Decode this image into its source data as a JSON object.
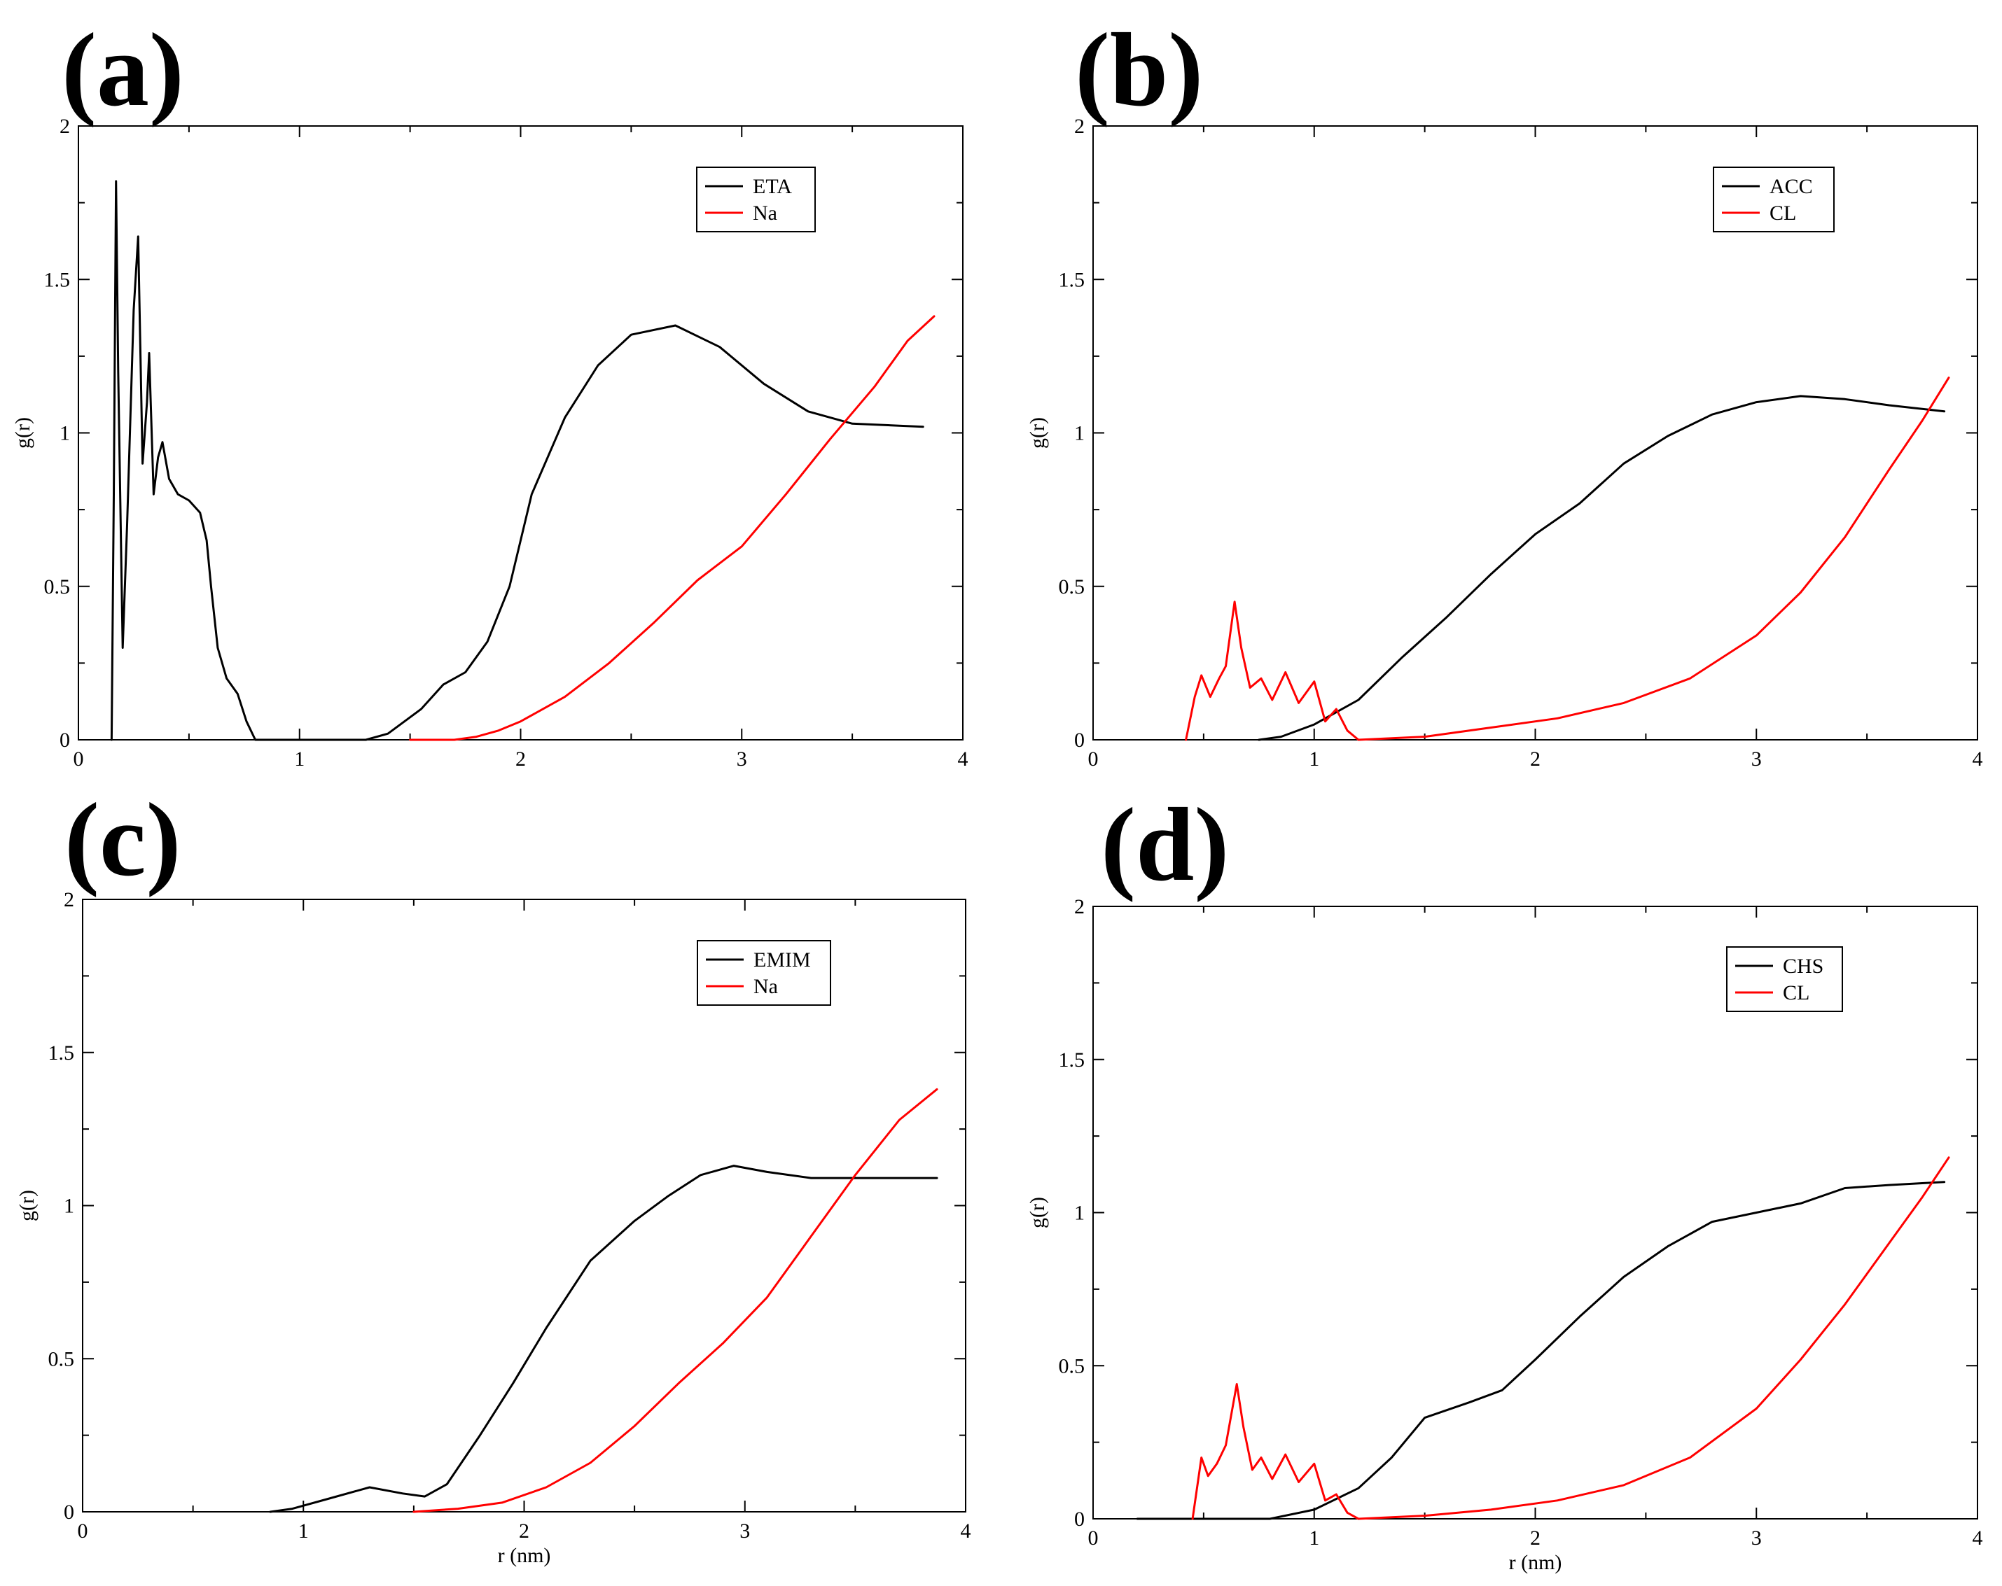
{
  "panel_labels": [
    "(a)",
    "(b)",
    "(c)",
    "(d)"
  ],
  "colors": {
    "series_black": "#000000",
    "series_red": "#ff0000",
    "axis": "#000000"
  },
  "chart_data": [
    {
      "type": "line",
      "panel": "(a)",
      "xlabel": "",
      "ylabel": "g(r)",
      "xlim": [
        0,
        4
      ],
      "ylim": [
        0,
        2
      ],
      "xticks": [
        0,
        1,
        2,
        3,
        4
      ],
      "yticks": [
        0,
        0.5,
        1,
        1.5,
        2
      ],
      "tick_labels_x": [
        "0",
        "1",
        "2",
        "3",
        "4"
      ],
      "tick_labels_y": [
        "0",
        "0.5",
        "1",
        "1.5",
        "2"
      ],
      "legend": "top-right",
      "series": [
        {
          "name": "ETA",
          "color": "#000000",
          "points": [
            [
              0.15,
              0
            ],
            [
              0.16,
              0.8
            ],
            [
              0.17,
              1.82
            ],
            [
              0.18,
              1.2
            ],
            [
              0.2,
              0.3
            ],
            [
              0.22,
              0.7
            ],
            [
              0.25,
              1.4
            ],
            [
              0.27,
              1.64
            ],
            [
              0.29,
              0.9
            ],
            [
              0.31,
              1.1
            ],
            [
              0.32,
              1.26
            ],
            [
              0.34,
              0.8
            ],
            [
              0.36,
              0.92
            ],
            [
              0.38,
              0.97
            ],
            [
              0.41,
              0.85
            ],
            [
              0.45,
              0.8
            ],
            [
              0.5,
              0.78
            ],
            [
              0.55,
              0.74
            ],
            [
              0.58,
              0.65
            ],
            [
              0.6,
              0.5
            ],
            [
              0.63,
              0.3
            ],
            [
              0.67,
              0.2
            ],
            [
              0.72,
              0.15
            ],
            [
              0.76,
              0.06
            ],
            [
              0.8,
              0
            ],
            [
              1.3,
              0
            ],
            [
              1.4,
              0.02
            ],
            [
              1.55,
              0.1
            ],
            [
              1.65,
              0.18
            ],
            [
              1.75,
              0.22
            ],
            [
              1.85,
              0.32
            ],
            [
              1.95,
              0.5
            ],
            [
              2.05,
              0.8
            ],
            [
              2.2,
              1.05
            ],
            [
              2.35,
              1.22
            ],
            [
              2.5,
              1.32
            ],
            [
              2.7,
              1.35
            ],
            [
              2.9,
              1.28
            ],
            [
              3.1,
              1.16
            ],
            [
              3.3,
              1.07
            ],
            [
              3.5,
              1.03
            ],
            [
              3.82,
              1.02
            ]
          ]
        },
        {
          "name": "Na",
          "color": "#ff0000",
          "points": [
            [
              1.5,
              0
            ],
            [
              1.7,
              0
            ],
            [
              1.8,
              0.01
            ],
            [
              1.9,
              0.03
            ],
            [
              2.0,
              0.06
            ],
            [
              2.2,
              0.14
            ],
            [
              2.4,
              0.25
            ],
            [
              2.6,
              0.38
            ],
            [
              2.8,
              0.52
            ],
            [
              3.0,
              0.63
            ],
            [
              3.2,
              0.8
            ],
            [
              3.4,
              0.98
            ],
            [
              3.6,
              1.15
            ],
            [
              3.75,
              1.3
            ],
            [
              3.87,
              1.38
            ]
          ]
        }
      ]
    },
    {
      "type": "line",
      "panel": "(b)",
      "xlabel": "",
      "ylabel": "g(r)",
      "xlim": [
        0,
        4
      ],
      "ylim": [
        0,
        2
      ],
      "xticks": [
        0,
        1,
        2,
        3,
        4
      ],
      "yticks": [
        0,
        0.5,
        1,
        1.5,
        2
      ],
      "tick_labels_x": [
        "0",
        "1",
        "2",
        "3",
        "4"
      ],
      "tick_labels_y": [
        "0",
        "0.5",
        "1",
        "1.5",
        "2"
      ],
      "legend": "top-right",
      "series": [
        {
          "name": "ACC",
          "color": "#000000",
          "points": [
            [
              0.75,
              0
            ],
            [
              0.85,
              0.01
            ],
            [
              1.0,
              0.05
            ],
            [
              1.2,
              0.13
            ],
            [
              1.4,
              0.27
            ],
            [
              1.6,
              0.4
            ],
            [
              1.8,
              0.54
            ],
            [
              2.0,
              0.67
            ],
            [
              2.2,
              0.77
            ],
            [
              2.4,
              0.9
            ],
            [
              2.6,
              0.99
            ],
            [
              2.8,
              1.06
            ],
            [
              3.0,
              1.1
            ],
            [
              3.2,
              1.12
            ],
            [
              3.4,
              1.11
            ],
            [
              3.6,
              1.09
            ],
            [
              3.85,
              1.07
            ]
          ]
        },
        {
          "name": "CL",
          "color": "#ff0000",
          "points": [
            [
              0.42,
              0
            ],
            [
              0.46,
              0.14
            ],
            [
              0.49,
              0.21
            ],
            [
              0.53,
              0.14
            ],
            [
              0.57,
              0.2
            ],
            [
              0.6,
              0.24
            ],
            [
              0.64,
              0.45
            ],
            [
              0.67,
              0.3
            ],
            [
              0.71,
              0.17
            ],
            [
              0.76,
              0.2
            ],
            [
              0.81,
              0.13
            ],
            [
              0.87,
              0.22
            ],
            [
              0.93,
              0.12
            ],
            [
              1.0,
              0.19
            ],
            [
              1.05,
              0.06
            ],
            [
              1.1,
              0.1
            ],
            [
              1.15,
              0.03
            ],
            [
              1.2,
              0
            ],
            [
              1.5,
              0.01
            ],
            [
              1.8,
              0.04
            ],
            [
              2.1,
              0.07
            ],
            [
              2.4,
              0.12
            ],
            [
              2.7,
              0.2
            ],
            [
              3.0,
              0.34
            ],
            [
              3.2,
              0.48
            ],
            [
              3.4,
              0.66
            ],
            [
              3.6,
              0.88
            ],
            [
              3.75,
              1.04
            ],
            [
              3.87,
              1.18
            ]
          ]
        }
      ]
    },
    {
      "type": "line",
      "panel": "(c)",
      "xlabel": "r (nm)",
      "ylabel": "g(r)",
      "xlim": [
        0,
        4
      ],
      "ylim": [
        0,
        2
      ],
      "xticks": [
        0,
        1,
        2,
        3,
        4
      ],
      "yticks": [
        0,
        0.5,
        1,
        1.5,
        2
      ],
      "tick_labels_x": [
        "0",
        "1",
        "2",
        "3",
        "4"
      ],
      "tick_labels_y": [
        "0",
        "0.5",
        "1",
        "1.5",
        "2"
      ],
      "legend": "top-right",
      "series": [
        {
          "name": "EMIM",
          "color": "#000000",
          "points": [
            [
              0.85,
              0
            ],
            [
              0.95,
              0.01
            ],
            [
              1.1,
              0.04
            ],
            [
              1.3,
              0.08
            ],
            [
              1.45,
              0.06
            ],
            [
              1.55,
              0.05
            ],
            [
              1.65,
              0.09
            ],
            [
              1.8,
              0.25
            ],
            [
              1.95,
              0.42
            ],
            [
              2.1,
              0.6
            ],
            [
              2.3,
              0.82
            ],
            [
              2.5,
              0.95
            ],
            [
              2.65,
              1.03
            ],
            [
              2.8,
              1.1
            ],
            [
              2.95,
              1.13
            ],
            [
              3.1,
              1.11
            ],
            [
              3.3,
              1.09
            ],
            [
              3.5,
              1.09
            ],
            [
              3.87,
              1.09
            ]
          ]
        },
        {
          "name": "Na",
          "color": "#ff0000",
          "points": [
            [
              1.5,
              0
            ],
            [
              1.7,
              0.01
            ],
            [
              1.9,
              0.03
            ],
            [
              2.1,
              0.08
            ],
            [
              2.3,
              0.16
            ],
            [
              2.5,
              0.28
            ],
            [
              2.7,
              0.42
            ],
            [
              2.9,
              0.55
            ],
            [
              3.1,
              0.7
            ],
            [
              3.3,
              0.9
            ],
            [
              3.5,
              1.1
            ],
            [
              3.7,
              1.28
            ],
            [
              3.87,
              1.38
            ]
          ]
        }
      ]
    },
    {
      "type": "line",
      "panel": "(d)",
      "xlabel": "r (nm)",
      "ylabel": "g(r)",
      "xlim": [
        0,
        4
      ],
      "ylim": [
        0,
        2
      ],
      "xticks": [
        0,
        1,
        2,
        3,
        4
      ],
      "yticks": [
        0,
        0.5,
        1,
        1.5,
        2
      ],
      "tick_labels_x": [
        "0",
        "1",
        "2",
        "3",
        "4"
      ],
      "tick_labels_y": [
        "0",
        "0.5",
        "1",
        "1.5",
        "2"
      ],
      "legend": "top-right",
      "series": [
        {
          "name": "CHS",
          "color": "#000000",
          "points": [
            [
              0.2,
              0
            ],
            [
              0.8,
              0
            ],
            [
              1.0,
              0.03
            ],
            [
              1.2,
              0.1
            ],
            [
              1.35,
              0.2
            ],
            [
              1.5,
              0.33
            ],
            [
              1.7,
              0.38
            ],
            [
              1.85,
              0.42
            ],
            [
              2.0,
              0.52
            ],
            [
              2.2,
              0.66
            ],
            [
              2.4,
              0.79
            ],
            [
              2.6,
              0.89
            ],
            [
              2.8,
              0.97
            ],
            [
              3.0,
              1.0
            ],
            [
              3.2,
              1.03
            ],
            [
              3.4,
              1.08
            ],
            [
              3.6,
              1.09
            ],
            [
              3.85,
              1.1
            ]
          ]
        },
        {
          "name": "CL",
          "color": "#ff0000",
          "points": [
            [
              0.45,
              0
            ],
            [
              0.49,
              0.2
            ],
            [
              0.52,
              0.14
            ],
            [
              0.56,
              0.18
            ],
            [
              0.6,
              0.24
            ],
            [
              0.65,
              0.44
            ],
            [
              0.68,
              0.3
            ],
            [
              0.72,
              0.16
            ],
            [
              0.76,
              0.2
            ],
            [
              0.81,
              0.13
            ],
            [
              0.87,
              0.21
            ],
            [
              0.93,
              0.12
            ],
            [
              1.0,
              0.18
            ],
            [
              1.05,
              0.06
            ],
            [
              1.1,
              0.08
            ],
            [
              1.15,
              0.02
            ],
            [
              1.2,
              0
            ],
            [
              1.5,
              0.01
            ],
            [
              1.8,
              0.03
            ],
            [
              2.1,
              0.06
            ],
            [
              2.4,
              0.11
            ],
            [
              2.7,
              0.2
            ],
            [
              3.0,
              0.36
            ],
            [
              3.2,
              0.52
            ],
            [
              3.4,
              0.7
            ],
            [
              3.6,
              0.9
            ],
            [
              3.75,
              1.05
            ],
            [
              3.87,
              1.18
            ]
          ]
        }
      ]
    }
  ]
}
